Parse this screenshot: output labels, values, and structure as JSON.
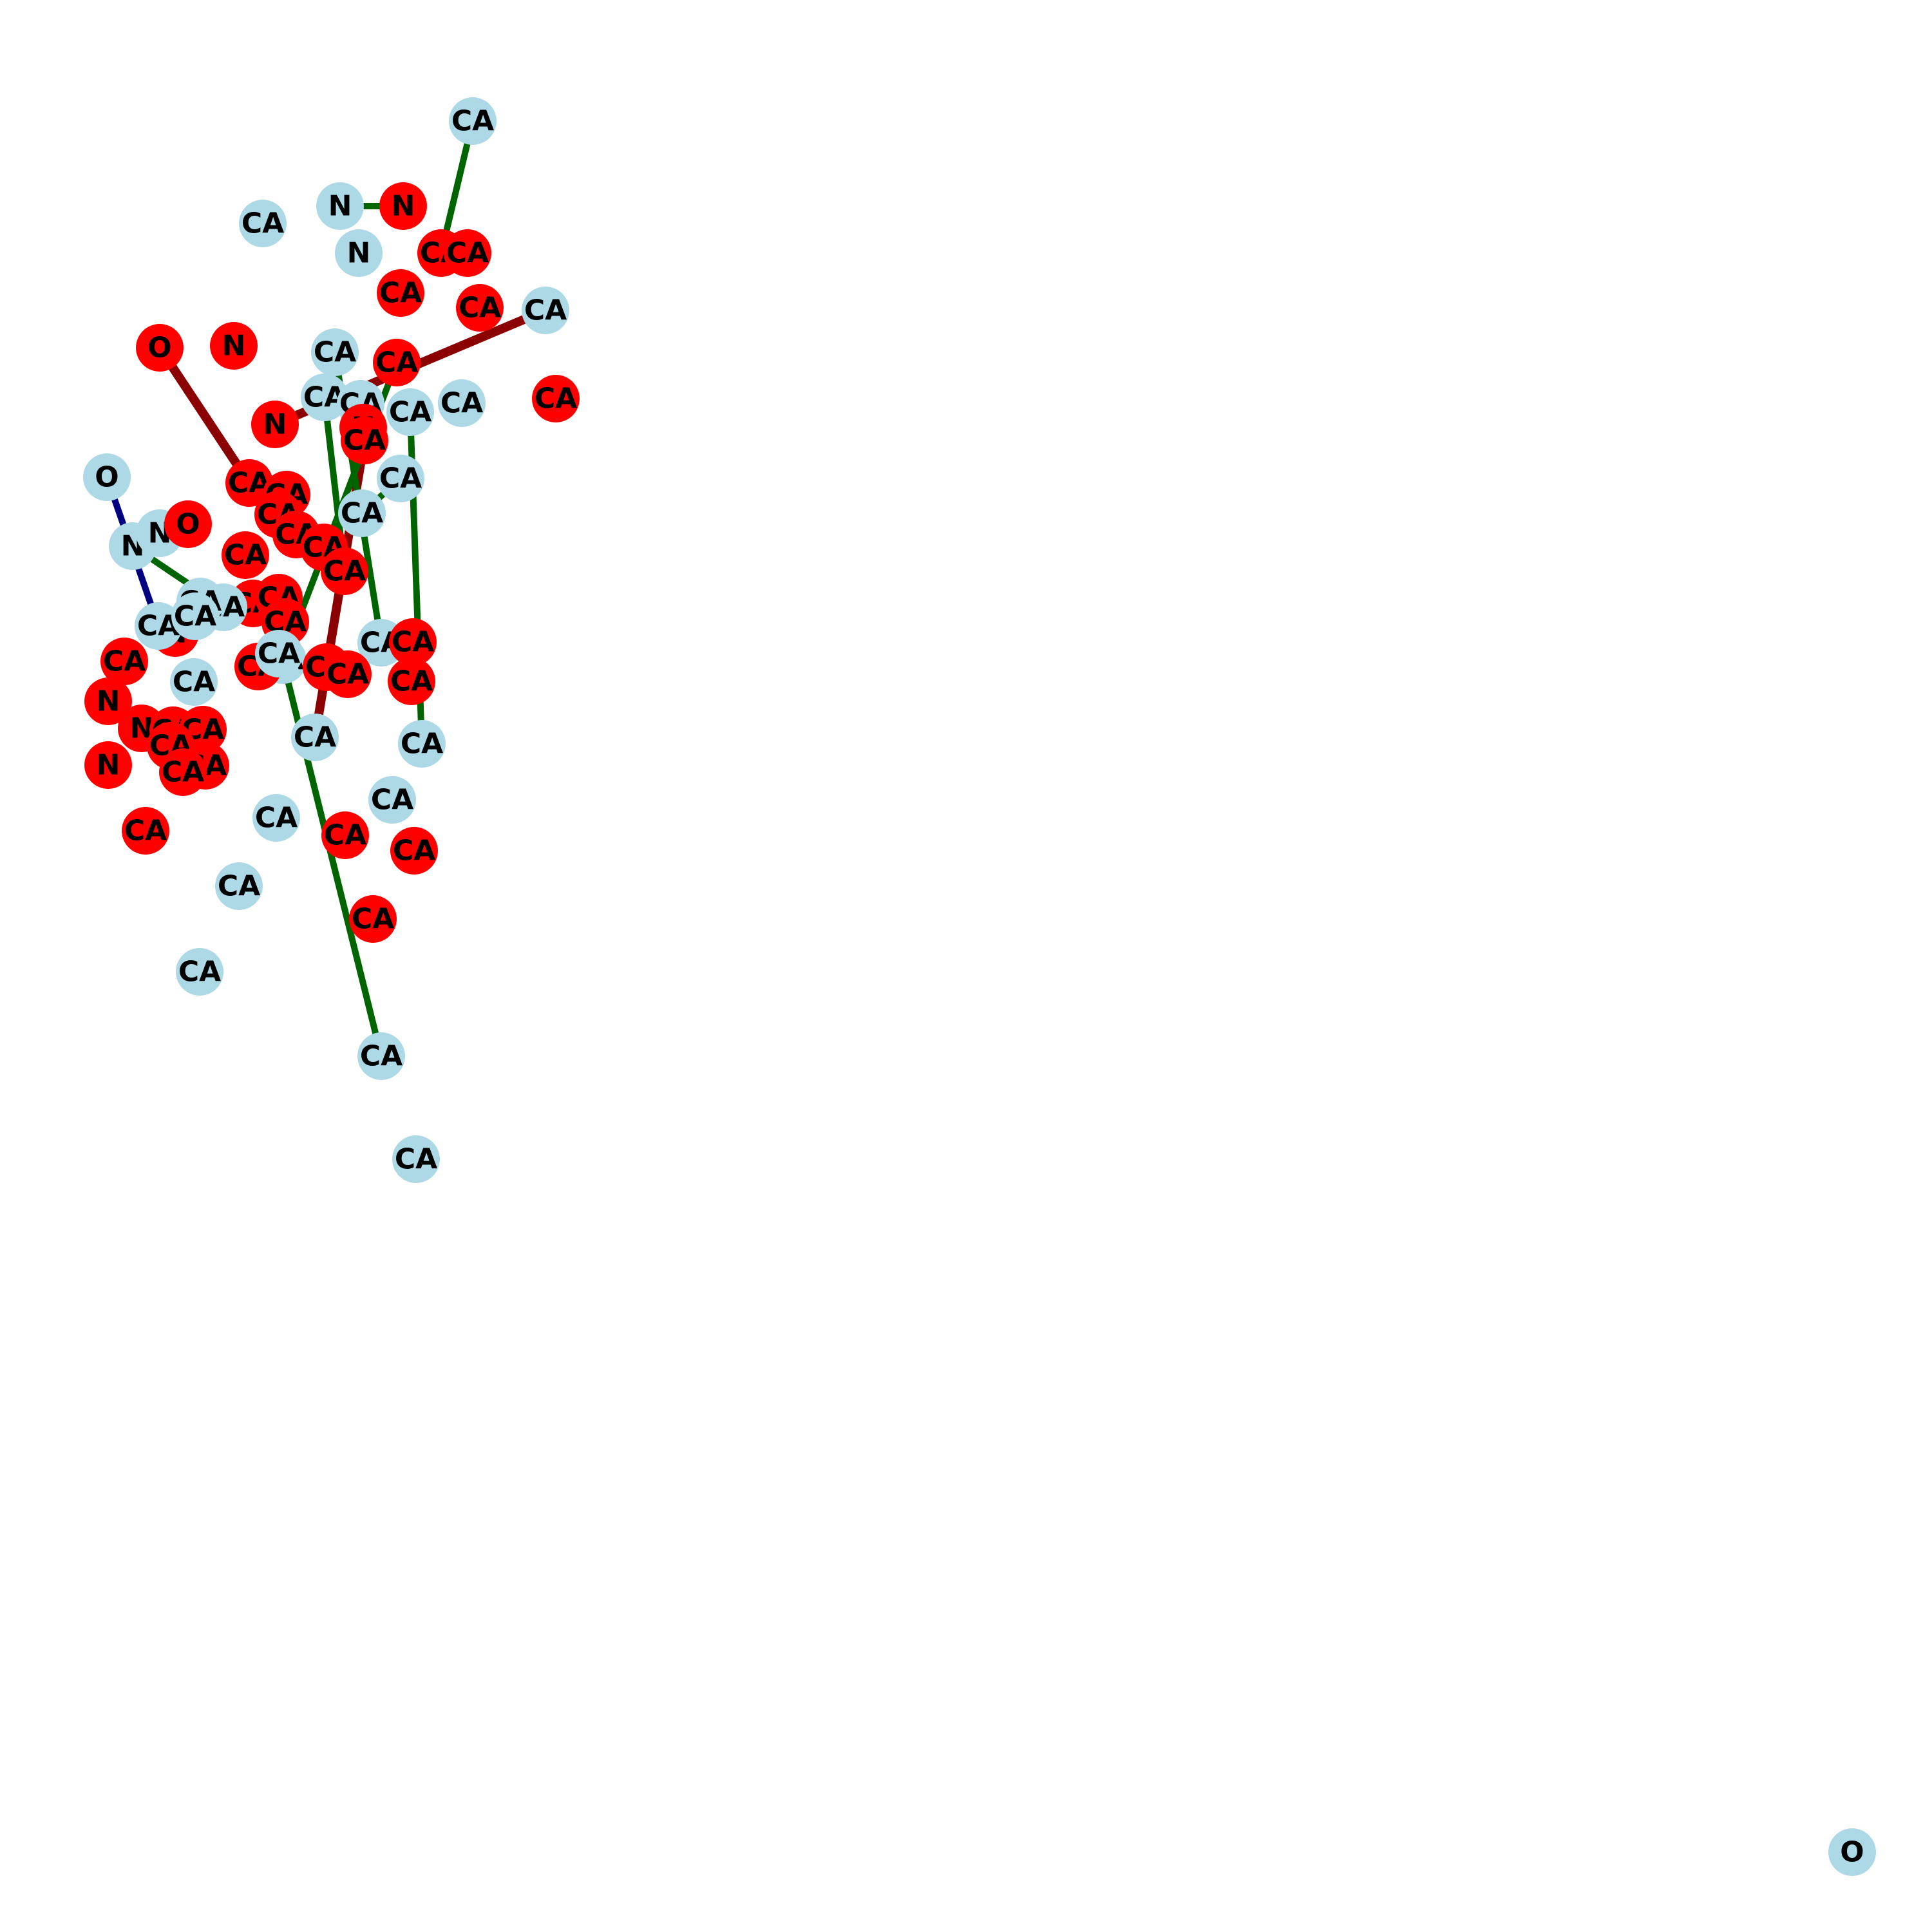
{
  "colors": {
    "light_node": "#add8e6",
    "red_node": "#ff0000",
    "green_edge": "#006400",
    "darkred_edge": "#8b0000",
    "navy_edge": "#000080"
  },
  "nodes": [
    {
      "label": "CA",
      "color": "light_node"
    },
    {
      "label": "CA",
      "color": "light_node"
    },
    {
      "label": "N",
      "color": "light_node"
    },
    {
      "label": "N",
      "color": "red_node"
    },
    {
      "label": "N",
      "color": "light_node"
    },
    {
      "label": "CA",
      "color": "red_node"
    },
    {
      "label": "CA",
      "color": "red_node"
    },
    {
      "label": "CA",
      "color": "red_node"
    },
    {
      "label": "CA",
      "color": "red_node"
    },
    {
      "label": "CA",
      "color": "light_node"
    },
    {
      "label": "O",
      "color": "red_node"
    },
    {
      "label": "N",
      "color": "red_node"
    },
    {
      "label": "CA",
      "color": "light_node"
    },
    {
      "label": "CA",
      "color": "red_node"
    },
    {
      "label": "CA",
      "color": "light_node"
    },
    {
      "label": "CA",
      "color": "red_node"
    },
    {
      "label": "CA",
      "color": "light_node"
    },
    {
      "label": "CA",
      "color": "light_node"
    },
    {
      "label": "CA",
      "color": "light_node"
    },
    {
      "label": "N",
      "color": "red_node"
    },
    {
      "label": "N",
      "color": "red_node"
    },
    {
      "label": "CA",
      "color": "red_node"
    },
    {
      "label": "O",
      "color": "light_node"
    },
    {
      "label": "CA",
      "color": "light_node"
    },
    {
      "label": "CA",
      "color": "red_node"
    },
    {
      "label": "CA",
      "color": "red_node"
    },
    {
      "label": "CA",
      "color": "red_node"
    },
    {
      "label": "CA",
      "color": "light_node"
    },
    {
      "label": "CA",
      "color": "light_node"
    },
    {
      "label": "N",
      "color": "light_node"
    },
    {
      "label": "N",
      "color": "light_node"
    },
    {
      "label": "O",
      "color": "red_node"
    },
    {
      "label": "CA",
      "color": "red_node"
    },
    {
      "label": "CA",
      "color": "red_node"
    },
    {
      "label": "CA",
      "color": "red_node"
    },
    {
      "label": "CA",
      "color": "red_node"
    },
    {
      "label": "CA",
      "color": "red_node"
    },
    {
      "label": "CA",
      "color": "light_node"
    },
    {
      "label": "CA",
      "color": "red_node"
    },
    {
      "label": "CA",
      "color": "red_node"
    },
    {
      "label": "N",
      "color": "red_node"
    },
    {
      "label": "CA",
      "color": "light_node"
    },
    {
      "label": "CA",
      "color": "light_node"
    },
    {
      "label": "CA",
      "color": "red_node"
    },
    {
      "label": "CA",
      "color": "red_node"
    },
    {
      "label": "CA",
      "color": "light_node"
    },
    {
      "label": "CA",
      "color": "red_node"
    },
    {
      "label": "CA",
      "color": "red_node"
    },
    {
      "label": "CA",
      "color": "red_node"
    },
    {
      "label": "CA",
      "color": "red_node"
    },
    {
      "label": "N",
      "color": "red_node"
    },
    {
      "label": "CA",
      "color": "light_node"
    },
    {
      "label": "N",
      "color": "red_node"
    },
    {
      "label": "N",
      "color": "red_node"
    },
    {
      "label": "CA",
      "color": "red_node"
    },
    {
      "label": "CA",
      "color": "red_node"
    },
    {
      "label": "CA",
      "color": "red_node"
    },
    {
      "label": "CA",
      "color": "red_node"
    },
    {
      "label": "CA",
      "color": "red_node"
    },
    {
      "label": "CA",
      "color": "light_node"
    },
    {
      "label": "CA",
      "color": "light_node"
    },
    {
      "label": "CA",
      "color": "light_node"
    },
    {
      "label": "CA",
      "color": "light_node"
    },
    {
      "label": "CA",
      "color": "red_node"
    },
    {
      "label": "CA",
      "color": "red_node"
    },
    {
      "label": "CA",
      "color": "red_node"
    },
    {
      "label": "CA",
      "color": "light_node"
    },
    {
      "label": "CA",
      "color": "light_node"
    },
    {
      "label": "CA",
      "color": "red_node"
    },
    {
      "label": "CA",
      "color": "light_node"
    },
    {
      "label": "CA",
      "color": "light_node"
    },
    {
      "label": "CA",
      "color": "light_node"
    },
    {
      "label": "CA",
      "color": "light_node"
    },
    {
      "label": "CA",
      "color": "light_node"
    },
    {
      "label": "O",
      "color": "light_node"
    }
  ],
  "edges": [
    {
      "from": 0,
      "to": 5,
      "color": "green_edge"
    },
    {
      "from": 2,
      "to": 3,
      "color": "green_edge"
    },
    {
      "from": 10,
      "to": 24,
      "color": "darkred_edge"
    },
    {
      "from": 22,
      "to": 41,
      "color": "navy_edge"
    },
    {
      "from": 29,
      "to": 37,
      "color": "green_edge"
    },
    {
      "from": 16,
      "to": 35,
      "color": "green_edge"
    },
    {
      "from": 18,
      "to": 60,
      "color": "green_edge"
    },
    {
      "from": 28,
      "to": 27,
      "color": "green_edge"
    },
    {
      "from": 19,
      "to": 9,
      "color": "darkred_edge"
    },
    {
      "from": 21,
      "to": 59,
      "color": "darkred_edge"
    },
    {
      "from": 12,
      "to": 42,
      "color": "green_edge"
    },
    {
      "from": 13,
      "to": 45,
      "color": "green_edge"
    },
    {
      "from": 45,
      "to": 69,
      "color": "green_edge"
    }
  ]
}
